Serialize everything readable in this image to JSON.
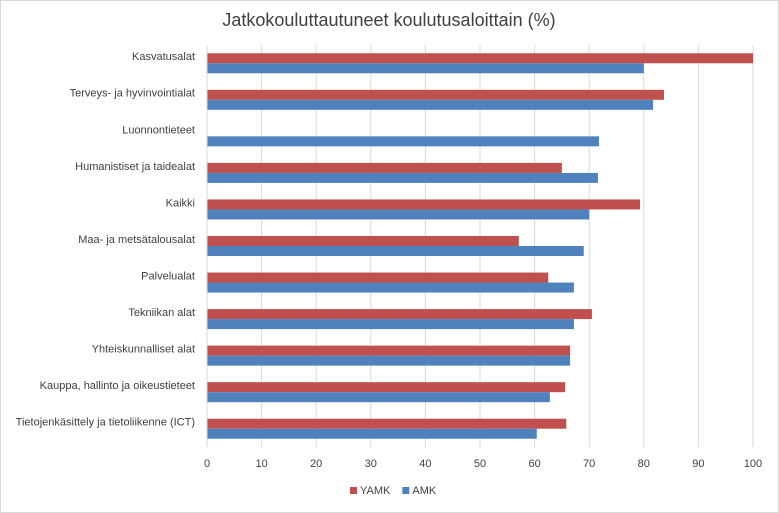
{
  "chart_data": {
    "type": "hbar",
    "title": "Jatkokouluttautuneet koulutusaloittain (%)",
    "categories": [
      "Kasvatusalat",
      "Terveys- ja hyvinvointialat",
      "Luonnontieteet",
      "Humanistiset ja taidealat",
      "Kaikki",
      "Maa- ja metsätalousalat",
      "Palvelualat",
      "Tekniikan alat",
      "Yhteiskunnalliset alat",
      "Kauppa, hallinto ja oikeustieteet",
      "Tietojenkäsittely ja tietoliikenne (ICT)"
    ],
    "series": [
      {
        "name": "YAMK",
        "color": "#c0504d",
        "values": [
          100,
          83.7,
          null,
          65,
          79.3,
          57.1,
          62.5,
          70.5,
          66.5,
          65.6,
          65.8
        ]
      },
      {
        "name": "AMK",
        "color": "#4f81bd",
        "values": [
          80,
          81.7,
          71.8,
          71.6,
          70,
          69,
          67.2,
          67.2,
          66.5,
          62.8,
          60.4
        ]
      }
    ],
    "xlim": [
      0,
      100
    ],
    "xticks": [
      0,
      10,
      20,
      30,
      40,
      50,
      60,
      70,
      80,
      90,
      100
    ],
    "grid": true,
    "legend": "bottom"
  }
}
